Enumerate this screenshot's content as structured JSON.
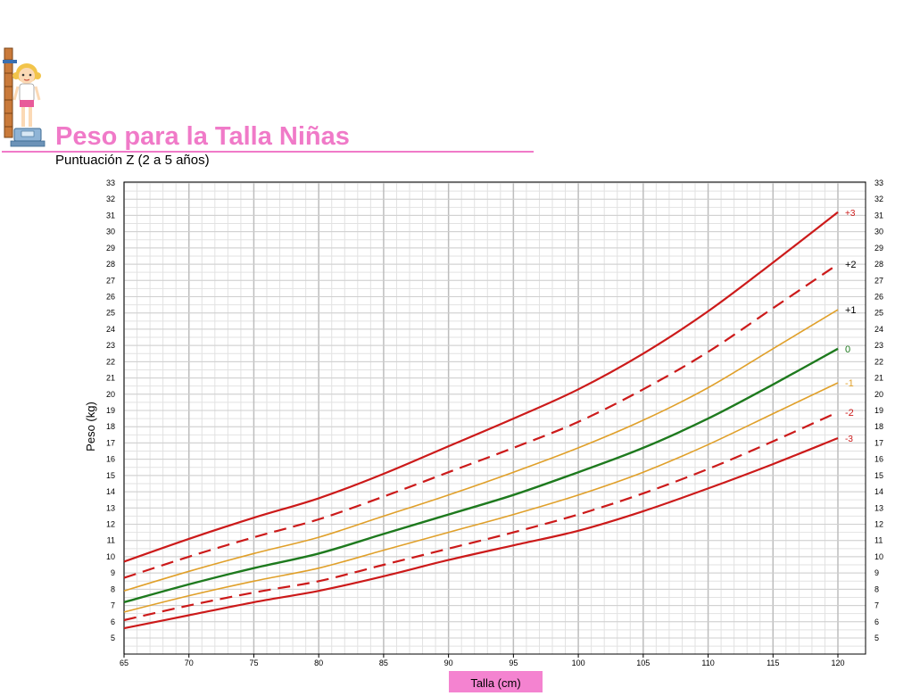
{
  "header": {
    "title": "Peso para la Talla Niñas",
    "subtitle": "Puntuación Z (2 a 5 años)"
  },
  "colors": {
    "title": "#f07ac8",
    "red": "#cc1a1a",
    "orange": "#e0a02a",
    "green": "#1e7a1e",
    "axis_label_bg": "#f483d0"
  },
  "chart_data": {
    "type": "line",
    "xlabel": "Talla (cm)",
    "ylabel": "Peso (kg)",
    "xlim": [
      65,
      120
    ],
    "ylim": [
      5,
      33
    ],
    "x_ticks": [
      65,
      70,
      75,
      80,
      85,
      90,
      95,
      100,
      105,
      110,
      115,
      120
    ],
    "y_ticks": [
      5,
      6,
      7,
      8,
      9,
      10,
      11,
      12,
      13,
      14,
      15,
      16,
      17,
      18,
      19,
      20,
      21,
      22,
      23,
      24,
      25,
      26,
      27,
      28,
      29,
      30,
      31,
      32,
      33
    ],
    "grid": true,
    "x": [
      65,
      70,
      75,
      80,
      85,
      90,
      95,
      100,
      105,
      110,
      115,
      120
    ],
    "series": [
      {
        "name": "+3",
        "color": "#cc1a1a",
        "dashed": false,
        "width": 2.2,
        "values": [
          9.7,
          11.1,
          12.4,
          13.6,
          15.1,
          16.8,
          18.5,
          20.3,
          22.5,
          25.1,
          28.1,
          31.2
        ]
      },
      {
        "name": "+2",
        "color": "#cc1a1a",
        "dashed": true,
        "width": 2.2,
        "values": [
          8.7,
          10.0,
          11.2,
          12.3,
          13.7,
          15.2,
          16.7,
          18.3,
          20.3,
          22.6,
          25.3,
          28.0
        ]
      },
      {
        "name": "+1",
        "color": "#e0a02a",
        "dashed": false,
        "width": 1.6,
        "values": [
          7.9,
          9.1,
          10.2,
          11.2,
          12.5,
          13.8,
          15.2,
          16.7,
          18.4,
          20.4,
          22.8,
          25.2
        ]
      },
      {
        "name": "0",
        "color": "#1e7a1e",
        "dashed": false,
        "width": 2.4,
        "values": [
          7.2,
          8.3,
          9.3,
          10.2,
          11.4,
          12.6,
          13.8,
          15.2,
          16.7,
          18.5,
          20.6,
          22.8
        ]
      },
      {
        "name": "-1",
        "color": "#e0a02a",
        "dashed": false,
        "width": 1.6,
        "values": [
          6.6,
          7.6,
          8.5,
          9.3,
          10.4,
          11.5,
          12.6,
          13.8,
          15.2,
          16.9,
          18.8,
          20.7
        ]
      },
      {
        "name": "-2",
        "color": "#cc1a1a",
        "dashed": true,
        "width": 2.2,
        "values": [
          6.1,
          7.0,
          7.8,
          8.5,
          9.5,
          10.5,
          11.5,
          12.6,
          13.9,
          15.4,
          17.1,
          18.9
        ]
      },
      {
        "name": "-3",
        "color": "#cc1a1a",
        "dashed": false,
        "width": 2.2,
        "values": [
          5.6,
          6.4,
          7.2,
          7.9,
          8.8,
          9.8,
          10.7,
          11.6,
          12.8,
          14.2,
          15.7,
          17.3
        ]
      }
    ]
  }
}
